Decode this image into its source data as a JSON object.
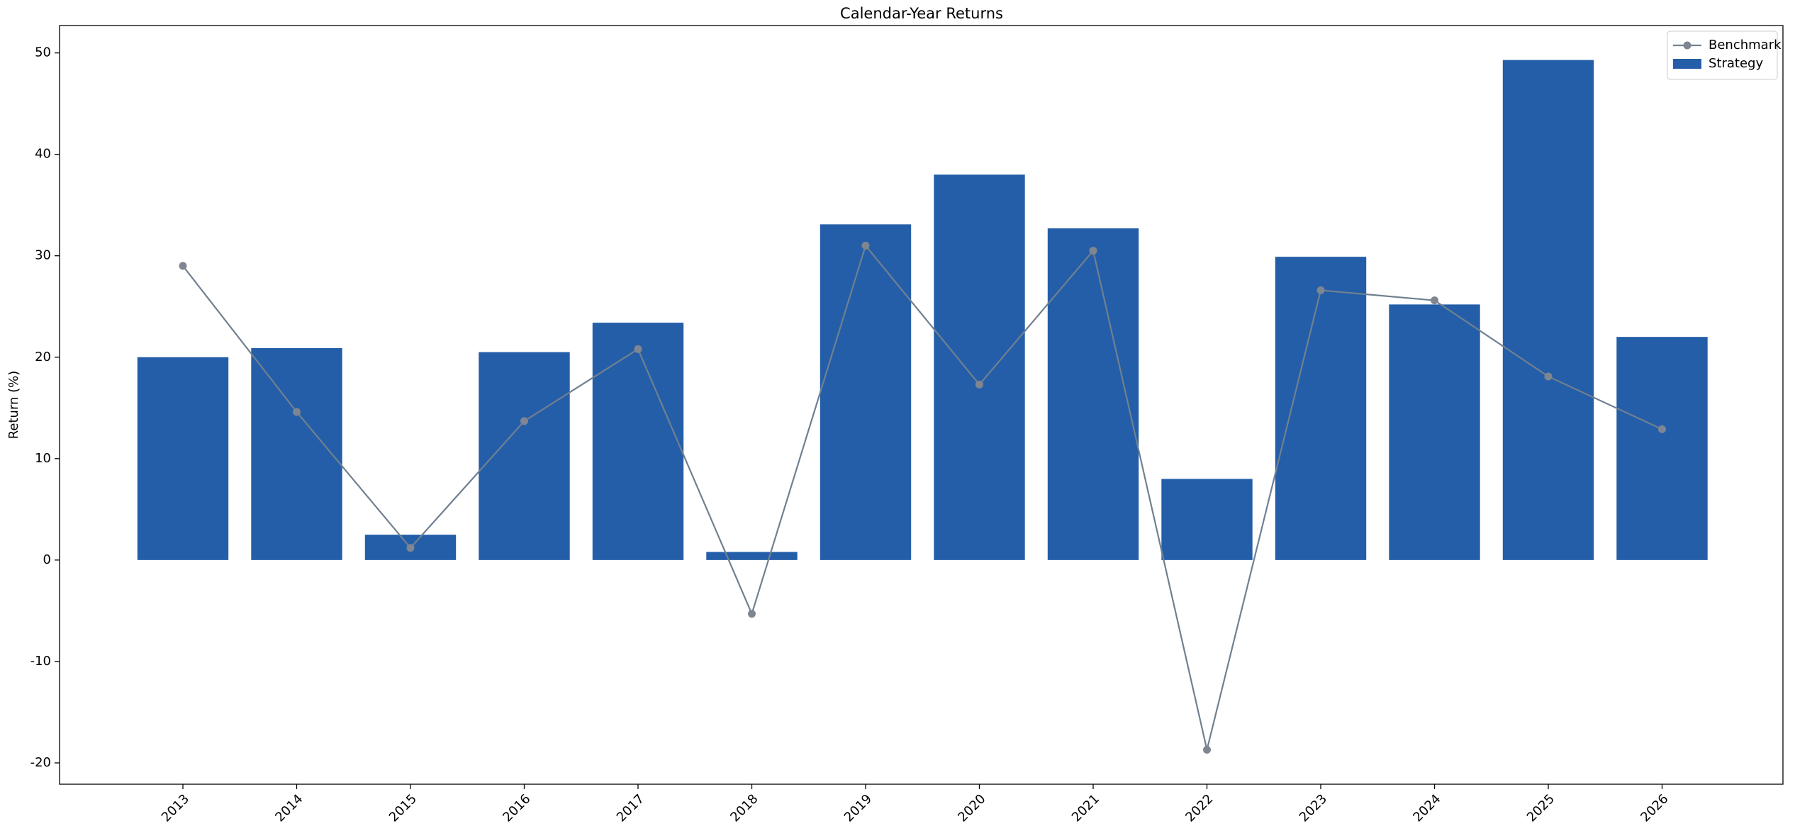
{
  "chart_data": {
    "type": "bar",
    "title": "Calendar-Year Returns",
    "y_label": "Return (%)",
    "categories": [
      "2013",
      "2014",
      "2015",
      "2016",
      "2017",
      "2018",
      "2019",
      "2020",
      "2021",
      "2022",
      "2023",
      "2024",
      "2025",
      "2026"
    ],
    "series": [
      {
        "name": "Benchmark",
        "type": "line",
        "color": "#708090",
        "values": [
          29.0,
          14.6,
          1.2,
          13.7,
          20.8,
          -5.3,
          31.0,
          17.3,
          30.5,
          -18.7,
          26.6,
          25.6,
          18.1,
          12.9
        ]
      },
      {
        "name": "Strategy",
        "type": "bar",
        "color": "#245ea8",
        "values": [
          20.0,
          20.9,
          2.5,
          20.5,
          23.4,
          0.8,
          33.1,
          38.0,
          32.7,
          8.0,
          29.9,
          25.2,
          49.3,
          22.0
        ]
      }
    ],
    "ylim": [
      -22.1,
      52.7
    ],
    "yticks": [
      -20,
      -10,
      0,
      10,
      20,
      30,
      40,
      50
    ],
    "legend": "upper right"
  }
}
